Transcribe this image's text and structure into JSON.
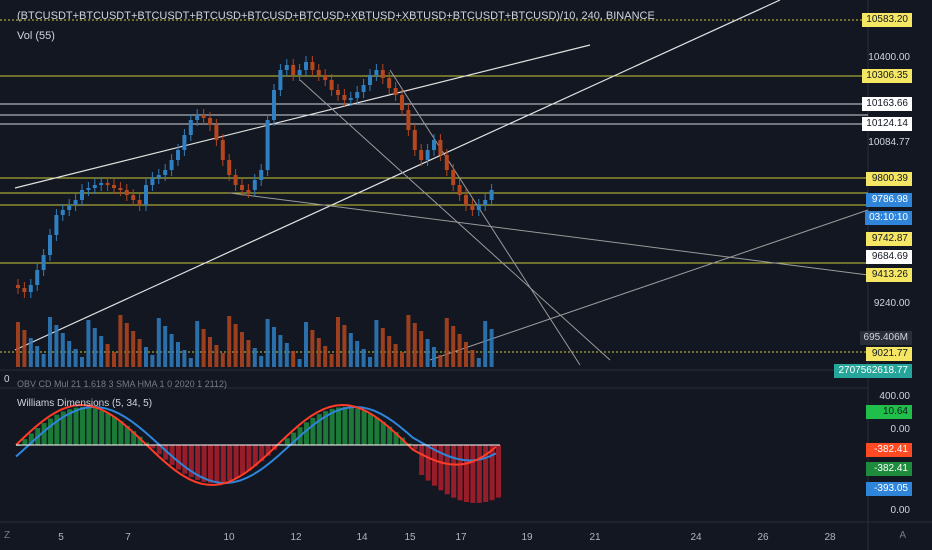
{
  "header": {
    "symbol_title": "(BTCUSDT+BTCUSDT+BTCUSDT+BTCUSD+BTCUSD+BTCUSD+XBTUSD+XBTUSD+BTCUSDT+BTCUSD)/10, 240, BINANCE",
    "volume_label": "Vol (55)",
    "oscillator_label": "OBV CD Mul 21 1.618 3 SMA HMA 1 0 2020 1 2112)",
    "zero_marker": "0",
    "indicator_label": "Williams Dimensions (5, 34, 5)"
  },
  "price_axis": {
    "labels": [
      {
        "text": "10583.20",
        "style": "yellow"
      },
      {
        "text": "10400.00",
        "style": "plain"
      },
      {
        "text": "10306.35",
        "style": "yellow"
      },
      {
        "text": "10163.66",
        "style": "white"
      },
      {
        "text": "10124.14",
        "style": "white"
      },
      {
        "text": "10084.77",
        "style": "plain"
      },
      {
        "text": "9800.39",
        "style": "yellow"
      },
      {
        "text": "9786.98",
        "style": "blue"
      },
      {
        "text": "03:10:10",
        "style": "blue"
      },
      {
        "text": "9742.87",
        "style": "yellow"
      },
      {
        "text": "9684.69",
        "style": "white"
      },
      {
        "text": "9413.26",
        "style": "yellow"
      },
      {
        "text": "9240.00",
        "style": "plain"
      },
      {
        "text": "695.406M",
        "style": "dark"
      },
      {
        "text": "9021.77",
        "style": "yellow"
      },
      {
        "text": "2707562618.77",
        "style": "teal"
      }
    ]
  },
  "indicator_axis": {
    "labels": [
      {
        "text": "400.00",
        "style": "plain"
      },
      {
        "text": "10.64",
        "style": "green"
      },
      {
        "text": "0.00",
        "style": "plain"
      },
      {
        "text": "-382.41",
        "style": "red"
      },
      {
        "text": "-382.41",
        "style": "darkgreen"
      },
      {
        "text": "-393.05",
        "style": "blue"
      },
      {
        "text": "0.00",
        "style": "plain"
      }
    ]
  },
  "time_axis": {
    "labels": [
      "5",
      "7",
      "10",
      "12",
      "14",
      "15",
      "17",
      "19",
      "21",
      "24",
      "26",
      "28"
    ]
  },
  "corners": {
    "left": "Z",
    "right": "A"
  },
  "colors": {
    "background": "#131722",
    "up": "#2f7fc1",
    "down": "#b5461e",
    "hline_yellow": "#c9c93a",
    "hline_white": "#d1d4dc",
    "macd_green": "#1e8c3c",
    "macd_red": "#b01e2b",
    "signal_red": "#ff3c28",
    "signal_blue": "#2f85d9"
  }
}
